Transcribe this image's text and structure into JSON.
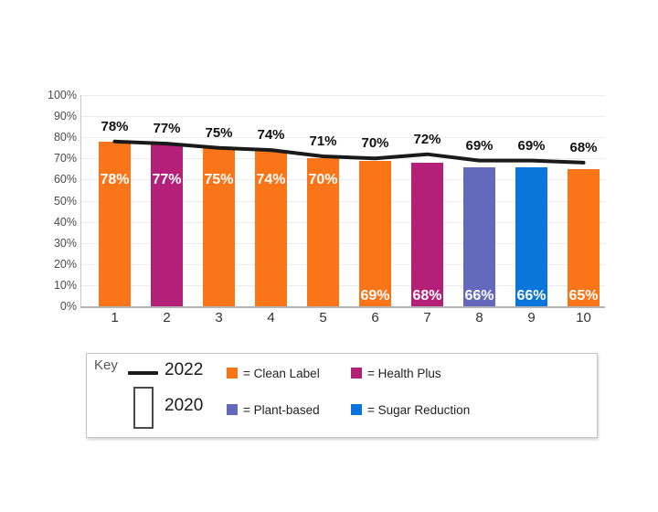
{
  "chart_data": {
    "type": "bar",
    "subtype": "vertical bars (2020) with overlaid line (2022)",
    "title": "",
    "categories": [
      "1",
      "2",
      "3",
      "4",
      "5",
      "6",
      "7",
      "8",
      "9",
      "10"
    ],
    "y_ticks": [
      "0%",
      "10%",
      "20%",
      "30%",
      "40%",
      "50%",
      "60%",
      "70%",
      "80%",
      "90%",
      "100%"
    ],
    "ylim": [
      0,
      100
    ],
    "grid": "horizontal gridlines on",
    "legend_position": "boxed key below chart",
    "series": [
      {
        "name": "2020",
        "type": "bar",
        "values": [
          78,
          77,
          75,
          74,
          70,
          69,
          68,
          66,
          66,
          65
        ],
        "data_labels": [
          "78%",
          "77%",
          "75%",
          "74%",
          "70%",
          "69%",
          "68%",
          "66%",
          "66%",
          "65%"
        ],
        "bar_brands": [
          "Clean Label",
          "Health Plus",
          "Clean Label",
          "Clean Label",
          "Clean Label",
          "Clean Label",
          "Health Plus",
          "Plant-based",
          "Sugar Reduction",
          "Clean Label"
        ],
        "bar_colors": [
          "#FA7517",
          "#B42077",
          "#FA7517",
          "#FA7517",
          "#FA7517",
          "#FA7517",
          "#B42077",
          "#6469BE",
          "#0A76DC",
          "#FA7517"
        ]
      },
      {
        "name": "2022",
        "type": "line",
        "color": "#1A1A1A",
        "values": [
          78,
          77,
          75,
          74,
          71,
          70,
          72,
          69,
          69,
          68
        ],
        "data_labels": [
          "78%",
          "77%",
          "75%",
          "74%",
          "71%",
          "70%",
          "72%",
          "69%",
          "69%",
          "68%"
        ]
      }
    ]
  },
  "key": {
    "title": "Key",
    "line_sample_label": "2022",
    "bar_sample_label": "2020",
    "items": [
      {
        "label": "= Clean Label",
        "color": "#FA7517"
      },
      {
        "label": "= Health Plus",
        "color": "#B42077"
      },
      {
        "label": "= Plant-based",
        "color": "#6469BE"
      },
      {
        "label": "= Sugar Reduction",
        "color": "#0A76DC"
      }
    ]
  },
  "colors": {
    "line_2022": "#1A1A1A",
    "clean_label_orange": "#FA7517",
    "health_plus_magenta": "#B42077",
    "plant_based_purple": "#6469BE",
    "sugar_reduction_blue": "#0A76DC",
    "gridline": "#ECECF0",
    "axis": "#B3B3B3"
  }
}
